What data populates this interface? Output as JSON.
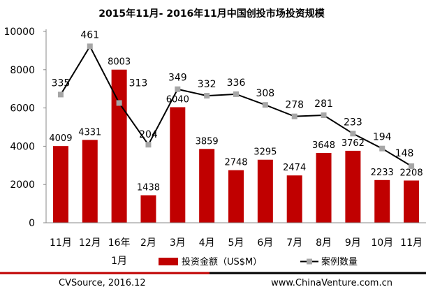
{
  "chart_data": {
    "type": "bar",
    "title": "2015年11月- 2016年11月中国创投市场投资规模",
    "categories": [
      "11月",
      "12月",
      "16年\n1月",
      "2月",
      "3月",
      "4月",
      "5月",
      "6月",
      "7月",
      "8月",
      "9月",
      "10月",
      "11月"
    ],
    "xlabel": "",
    "ylabel": "",
    "ylim": [
      0,
      10000
    ],
    "yticks": [
      0,
      2000,
      4000,
      6000,
      8000,
      10000
    ],
    "grid": false,
    "legend_position": "bottom",
    "series": [
      {
        "name": "投资金额（US$M）",
        "type": "bar",
        "color": "#c00000",
        "values": [
          4009,
          4331,
          8003,
          1438,
          6040,
          3859,
          2748,
          3295,
          2474,
          3648,
          3762,
          2233,
          2208
        ]
      },
      {
        "name": "案例数量",
        "type": "line",
        "color": "#000000",
        "marker_color": "#a6a6a6",
        "values": [
          335,
          461,
          313,
          204,
          349,
          332,
          336,
          308,
          278,
          281,
          233,
          194,
          148
        ],
        "secondary_ylim": [
          0,
          500
        ]
      }
    ]
  },
  "footer": {
    "source": "CVSource, 2016.12",
    "website": "www.ChinaVenture.com.cn"
  },
  "colors": {
    "bar": "#c00000",
    "line": "#000000",
    "marker": "#a6a6a6",
    "footer_rule_red": "#c00000",
    "footer_rule_black": "#000000"
  }
}
